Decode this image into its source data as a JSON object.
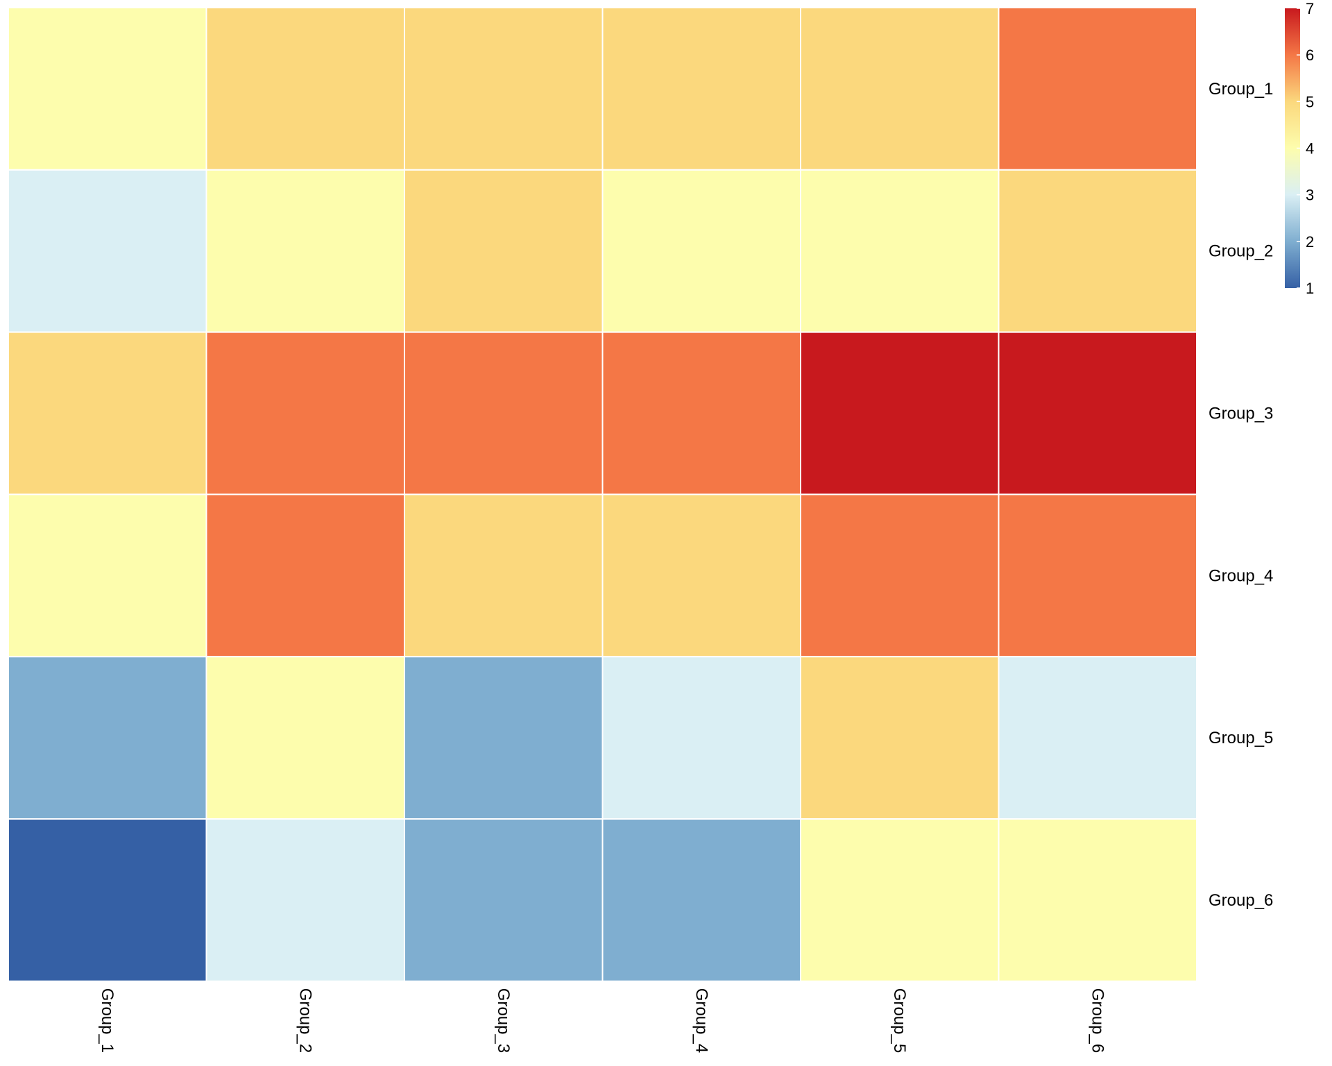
{
  "chart_data": {
    "type": "heatmap",
    "title": "",
    "xlabel": "",
    "ylabel": "",
    "rows": [
      "Group_1",
      "Group_2",
      "Group_3",
      "Group_4",
      "Group_5",
      "Group_6"
    ],
    "columns": [
      "Group_1",
      "Group_2",
      "Group_3",
      "Group_4",
      "Group_5",
      "Group_6"
    ],
    "values": [
      [
        4,
        5,
        5,
        5,
        5,
        6
      ],
      [
        3,
        4,
        5,
        4,
        4,
        5
      ],
      [
        5,
        6,
        6,
        6,
        7,
        7
      ],
      [
        4,
        6,
        5,
        5,
        6,
        6
      ],
      [
        2,
        4,
        2,
        3,
        5,
        3
      ],
      [
        1,
        3,
        2,
        2,
        4,
        4
      ]
    ],
    "colorbar": {
      "min": 1,
      "max": 7,
      "ticks": [
        1,
        2,
        3,
        4,
        5,
        6,
        7
      ],
      "colors": [
        "#3560A5",
        "#7FAED0",
        "#DAEFF4",
        "#FDFDAD",
        "#FBD87D",
        "#F47746",
        "#C8191E"
      ],
      "placement": "top-right"
    },
    "grid": false,
    "cell_border_color": "#ffffff"
  }
}
